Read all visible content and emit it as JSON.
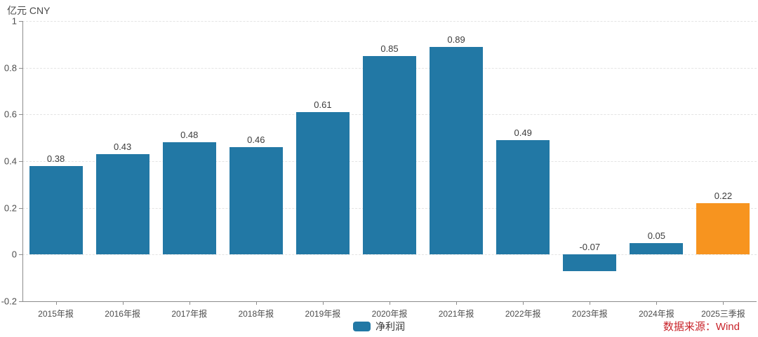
{
  "header": {
    "unit_label": "亿元  CNY"
  },
  "legend": {
    "label": "净利润"
  },
  "source": {
    "text": "数据来源：Wind"
  },
  "colors": {
    "bar_default": "#2278A5",
    "bar_highlight": "#F7941F",
    "source_text": "#C8232A",
    "axis": "#8c8c8c",
    "grid": "#e4e4e4",
    "tick_label": "#4d4d4d",
    "value_label": "#3c3c3c",
    "background": "#ffffff"
  },
  "chart_data": {
    "type": "bar",
    "title": "",
    "xlabel": "",
    "ylabel": "亿元 CNY",
    "categories": [
      "2015年报",
      "2016年报",
      "2017年报",
      "2018年报",
      "2019年报",
      "2020年报",
      "2021年报",
      "2022年报",
      "2023年报",
      "2024年报",
      "2025三季报"
    ],
    "series": [
      {
        "name": "净利润",
        "values": [
          0.38,
          0.43,
          0.48,
          0.46,
          0.61,
          0.85,
          0.89,
          0.49,
          -0.07,
          0.05,
          0.22
        ]
      }
    ],
    "value_labels": [
      "0.38",
      "0.43",
      "0.48",
      "0.46",
      "0.61",
      "0.85",
      "0.89",
      "0.49",
      "-0.07",
      "0.05",
      "0.22"
    ],
    "bar_colors": [
      "#2278A5",
      "#2278A5",
      "#2278A5",
      "#2278A5",
      "#2278A5",
      "#2278A5",
      "#2278A5",
      "#2278A5",
      "#2278A5",
      "#2278A5",
      "#F7941F"
    ],
    "ylim": [
      -0.2,
      1
    ],
    "yticks": [
      -0.2,
      0,
      0.2,
      0.4,
      0.6,
      0.8,
      1
    ],
    "grid": true,
    "grid_style": "dashed",
    "legend_position": "bottom-center"
  }
}
